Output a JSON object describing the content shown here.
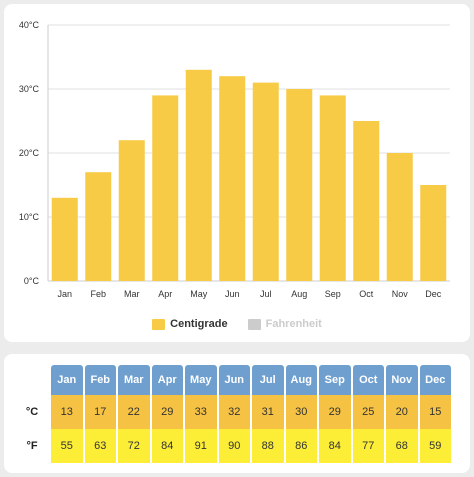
{
  "colors": {
    "centigrade": "#f7cb45",
    "fahrenheit": "#cccccc",
    "table_header": "#6f9fcf",
    "table_celsius_row": "#f5c243",
    "table_fahrenheit_row": "#fcee36"
  },
  "chart_data": {
    "type": "bar",
    "categories": [
      "Jan",
      "Feb",
      "Mar",
      "Apr",
      "May",
      "Jun",
      "Jul",
      "Aug",
      "Sep",
      "Oct",
      "Nov",
      "Dec"
    ],
    "series": [
      {
        "name": "Centigrade",
        "values": [
          13,
          17,
          22,
          29,
          33,
          32,
          31,
          30,
          29,
          25,
          20,
          15
        ]
      },
      {
        "name": "Fahrenheit",
        "values": [
          55,
          63,
          72,
          84,
          91,
          90,
          88,
          86,
          84,
          77,
          68,
          59
        ],
        "hidden": true
      }
    ],
    "ylim": [
      0,
      40
    ],
    "yticks": [
      {
        "value": 0,
        "label": "0°C"
      },
      {
        "value": 10,
        "label": "10°C"
      },
      {
        "value": 20,
        "label": "20°C"
      },
      {
        "value": 30,
        "label": "30°C"
      },
      {
        "value": 40,
        "label": "40°C"
      }
    ],
    "grid": true,
    "legend": "bottom"
  },
  "legend": {
    "centigrade_label": "Centigrade",
    "fahrenheit_label": "Fahrenheit"
  },
  "table": {
    "months": [
      "Jan",
      "Feb",
      "Mar",
      "Apr",
      "May",
      "Jun",
      "Jul",
      "Aug",
      "Sep",
      "Oct",
      "Nov",
      "Dec"
    ],
    "celsius_label": "°C",
    "fahrenheit_label": "°F",
    "celsius": [
      "13",
      "17",
      "22",
      "29",
      "33",
      "32",
      "31",
      "30",
      "29",
      "25",
      "20",
      "15"
    ],
    "fahrenheit": [
      "55",
      "63",
      "72",
      "84",
      "91",
      "90",
      "88",
      "86",
      "84",
      "77",
      "68",
      "59"
    ]
  }
}
